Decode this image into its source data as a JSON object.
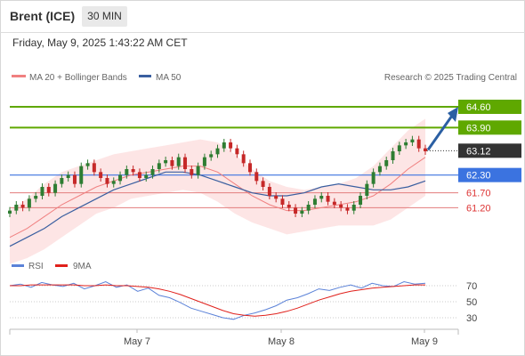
{
  "header": {
    "title": "Brent (ICE)",
    "timeframe": "30 MIN"
  },
  "datetime": "Friday, May 9, 2025 1:43:22 AM CET",
  "legend": {
    "ma20": "MA 20 + Bollinger Bands",
    "ma50": "MA 50",
    "credit": "Research © 2025 Trading Central",
    "rsi": "RSI",
    "rsi_ma": "9MA"
  },
  "colors": {
    "ma20": "#f08080",
    "ma50": "#3a5fa0",
    "bands_fill": "#fde0e0",
    "bull": "#2e7d32",
    "bear": "#c62828",
    "target": "#5fa800",
    "support": "#e27c7c",
    "pivot": "#3b73e0",
    "price_box": "#333333",
    "arrow": "#2b5fa3",
    "rsi": "#5b82d8",
    "rsi_ma": "#e0201b"
  },
  "chart_data": [
    {
      "type": "candlestick",
      "title": "Brent (ICE)",
      "timeframe": "30 MIN",
      "x_labels": [
        "May 7",
        "May 8",
        "May 9"
      ],
      "ylim": [
        59.8,
        65.2
      ],
      "last_price": 63.12,
      "levels": [
        {
          "value": 64.6,
          "label": "64.60",
          "kind": "resistance"
        },
        {
          "value": 63.9,
          "label": "63.90",
          "kind": "resistance"
        },
        {
          "value": 63.12,
          "label": "63.12",
          "kind": "last"
        },
        {
          "value": 62.3,
          "label": "62.30",
          "kind": "pivot"
        },
        {
          "value": 61.7,
          "label": "61.70",
          "kind": "support"
        },
        {
          "value": 61.2,
          "label": "61.20",
          "kind": "support"
        }
      ],
      "series": [
        {
          "name": "MA 20 + Bollinger Bands",
          "values": [
            60.2,
            60.5,
            60.9,
            61.3,
            61.6,
            61.9,
            62.1,
            62.3,
            62.4,
            62.5,
            62.6,
            62.6,
            62.4,
            62.0,
            61.6,
            61.3,
            61.1,
            61.1,
            61.2,
            61.3,
            61.4,
            61.6,
            62.0,
            62.5,
            62.9
          ]
        },
        {
          "name": "MA 50",
          "values": [
            59.9,
            60.2,
            60.5,
            60.9,
            61.2,
            61.5,
            61.8,
            62.0,
            62.2,
            62.4,
            62.4,
            62.3,
            62.1,
            61.9,
            61.7,
            61.6,
            61.6,
            61.7,
            61.9,
            62.0,
            61.9,
            61.8,
            61.8,
            61.9,
            62.1
          ]
        }
      ],
      "closes": [
        61.1,
        61.3,
        61.2,
        61.5,
        61.6,
        61.9,
        61.7,
        62.0,
        62.2,
        62.3,
        62.0,
        62.6,
        62.7,
        62.4,
        62.2,
        62.0,
        62.1,
        62.3,
        62.5,
        62.4,
        62.2,
        62.3,
        62.5,
        62.7,
        62.8,
        62.6,
        62.9,
        62.5,
        62.3,
        62.6,
        62.9,
        63.0,
        63.2,
        63.4,
        63.2,
        63.0,
        62.7,
        62.4,
        62.1,
        61.9,
        61.6,
        61.5,
        61.3,
        61.2,
        61.0,
        61.1,
        61.3,
        61.5,
        61.6,
        61.4,
        61.3,
        61.2,
        61.1,
        61.3,
        61.6,
        62.0,
        62.4,
        62.6,
        62.8,
        63.1,
        63.3,
        63.4,
        63.5,
        63.2,
        63.1
      ],
      "annotations": [
        "Research © 2025 Trading Central"
      ]
    },
    {
      "type": "line",
      "x_labels": [
        "May 7",
        "May 8",
        "May 9"
      ],
      "ylim": [
        20,
        80
      ],
      "yticks": [
        70,
        50,
        30
      ],
      "series": [
        {
          "name": "RSI",
          "values": [
            70,
            72,
            68,
            74,
            71,
            69,
            73,
            66,
            70,
            75,
            68,
            71,
            63,
            67,
            58,
            55,
            49,
            42,
            38,
            34,
            30,
            28,
            33,
            36,
            40,
            45,
            52,
            55,
            60,
            66,
            64,
            68,
            71,
            67,
            73,
            70,
            69,
            75,
            72,
            73
          ]
        },
        {
          "name": "9MA",
          "values": [
            70,
            70,
            71,
            71,
            71,
            71,
            71,
            70,
            70,
            71,
            70,
            70,
            69,
            68,
            66,
            63,
            59,
            54,
            49,
            44,
            39,
            35,
            33,
            32,
            33,
            35,
            38,
            42,
            47,
            52,
            56,
            60,
            63,
            65,
            67,
            68,
            69,
            70,
            71,
            71
          ]
        }
      ]
    }
  ]
}
